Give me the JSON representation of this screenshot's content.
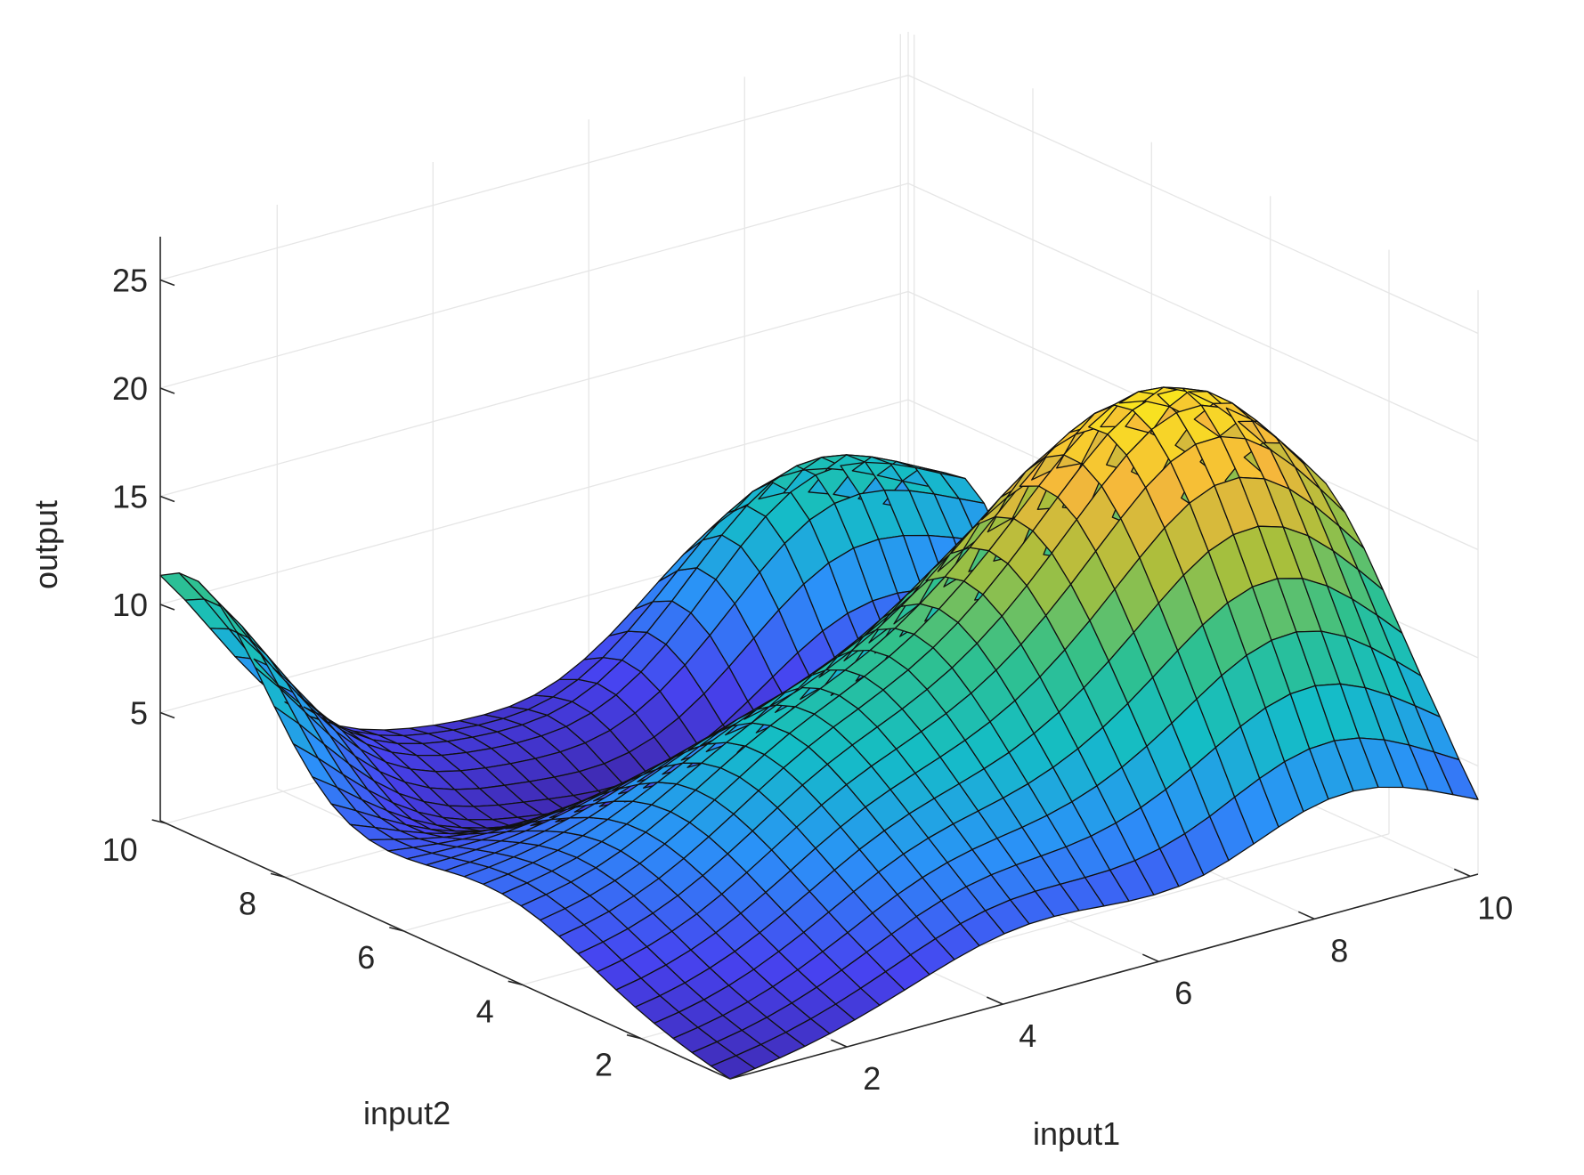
{
  "chart_data": {
    "type": "surface",
    "x": [
      0.5,
      0.82,
      1.14,
      1.46,
      1.78,
      2.1,
      2.42,
      2.74,
      3.06,
      3.38,
      3.7,
      4.02,
      4.34,
      4.66,
      4.98,
      5.3,
      5.62,
      5.94,
      6.26,
      6.58,
      6.9,
      7.22,
      7.54,
      7.86,
      8.18,
      8.5,
      8.82,
      9.14,
      9.46,
      9.78,
      10.1
    ],
    "y": [
      0.5,
      0.82,
      1.14,
      1.46,
      1.78,
      2.1,
      2.42,
      2.74,
      3.06,
      3.38,
      3.7,
      4.02,
      4.34,
      4.66,
      4.98,
      5.3,
      5.62,
      5.94,
      6.26,
      6.58,
      6.9,
      7.22,
      7.54,
      7.86,
      8.18,
      8.5,
      8.82,
      9.14,
      9.46,
      9.78,
      10.1
    ],
    "z": [
      [
        0.0,
        0.16,
        0.34,
        0.56,
        0.83,
        1.15,
        1.51,
        1.9,
        2.3,
        2.68,
        3.0,
        3.24,
        3.38,
        3.41,
        3.36,
        3.26,
        3.17,
        3.14,
        3.22,
        3.43,
        3.79,
        4.24,
        4.7,
        5.1,
        5.36,
        5.42,
        5.28,
        4.96,
        4.51,
        3.99,
        3.45
      ],
      [
        0.19,
        0.36,
        0.56,
        0.81,
        1.12,
        1.48,
        1.9,
        2.35,
        2.81,
        3.24,
        3.62,
        3.91,
        4.09,
        4.17,
        4.18,
        4.18,
        4.21,
        4.33,
        4.57,
        4.94,
        5.43,
        6.0,
        6.55,
        7.01,
        7.29,
        7.35,
        7.16,
        6.76,
        6.2,
        5.56,
        4.89
      ],
      [
        0.42,
        0.6,
        0.82,
        1.1,
        1.45,
        1.86,
        2.34,
        2.85,
        3.37,
        3.87,
        4.29,
        4.62,
        4.85,
        4.99,
        5.09,
        5.2,
        5.38,
        5.67,
        6.07,
        6.59,
        7.22,
        7.9,
        8.56,
        9.1,
        9.43,
        9.49,
        9.26,
        8.77,
        8.09,
        7.3,
        6.47
      ],
      [
        0.68,
        0.87,
        1.11,
        1.42,
        1.81,
        2.27,
        2.8,
        3.36,
        3.95,
        4.49,
        4.96,
        5.34,
        5.62,
        5.83,
        6.02,
        6.25,
        6.57,
        6.99,
        7.53,
        8.19,
        8.94,
        9.74,
        10.51,
        11.13,
        11.51,
        11.58,
        11.3,
        10.73,
        9.91,
        8.97,
        7.97
      ],
      [
        0.98,
        1.18,
        1.44,
        1.78,
        2.21,
        2.72,
        3.29,
        3.91,
        4.54,
        5.13,
        5.65,
        6.07,
        6.41,
        6.69,
        6.98,
        7.32,
        7.76,
        8.31,
        8.98,
        9.77,
        10.66,
        11.58,
        12.45,
        13.16,
        13.58,
        13.65,
        13.34,
        12.68,
        11.76,
        10.69,
        9.55
      ],
      [
        1.33,
        1.54,
        1.82,
        2.19,
        2.64,
        3.19,
        3.81,
        4.47,
        5.14,
        5.78,
        6.33,
        6.8,
        7.19,
        7.55,
        7.93,
        8.37,
        8.93,
        9.6,
        10.41,
        11.33,
        12.34,
        13.38,
        14.36,
        15.14,
        15.6,
        15.67,
        15.32,
        14.6,
        13.59,
        12.41,
        11.15
      ],
      [
        1.73,
        1.95,
        2.25,
        2.63,
        3.11,
        3.69,
        4.34,
        5.04,
        5.75,
        6.42,
        7.02,
        7.52,
        7.96,
        8.39,
        8.85,
        9.39,
        10.05,
        10.84,
        11.77,
        12.81,
        13.94,
        15.08,
        16.14,
        16.98,
        17.47,
        17.53,
        17.15,
        16.37,
        15.29,
        14.02,
        12.67
      ],
      [
        2.16,
        2.39,
        2.69,
        3.09,
        3.58,
        4.18,
        4.86,
        5.59,
        6.33,
        7.03,
        7.66,
        8.2,
        8.68,
        9.17,
        9.69,
        10.31,
        11.06,
        11.94,
        12.96,
        14.09,
        15.3,
        16.5,
        17.61,
        18.48,
        18.98,
        19.02,
        18.61,
        17.79,
        16.66,
        15.34,
        13.93
      ],
      [
        2.6,
        2.83,
        3.13,
        3.53,
        4.03,
        4.64,
        5.33,
        6.07,
        6.83,
        7.56,
        8.21,
        8.78,
        9.3,
        9.82,
        10.41,
        11.09,
        11.9,
        12.85,
        13.94,
        15.13,
        16.37,
        17.6,
        18.71,
        19.58,
        20.05,
        20.07,
        19.63,
        18.79,
        17.64,
        16.3,
        14.87
      ],
      [
        3.01,
        3.23,
        3.53,
        3.93,
        4.42,
        5.03,
        5.72,
        6.46,
        7.22,
        7.96,
        8.62,
        9.21,
        9.74,
        10.3,
        10.91,
        11.62,
        12.47,
        13.45,
        14.56,
        15.76,
        17.0,
        18.2,
        19.28,
        20.08,
        20.49,
        20.46,
        20.0,
        19.14,
        17.99,
        16.66,
        15.25
      ],
      [
        3.36,
        3.58,
        3.86,
        4.24,
        4.72,
        5.31,
        5.98,
        6.71,
        7.45,
        8.18,
        8.84,
        9.42,
        9.96,
        10.52,
        11.13,
        11.85,
        12.7,
        13.67,
        14.76,
        15.93,
        17.12,
        18.25,
        19.22,
        19.92,
        20.22,
        20.11,
        19.59,
        18.72,
        17.58,
        16.28,
        14.92
      ],
      [
        3.62,
        3.83,
        4.09,
        4.44,
        4.9,
        5.45,
        6.08,
        6.77,
        7.48,
        8.17,
        8.8,
        9.36,
        9.88,
        10.42,
        11.02,
        11.72,
        12.54,
        13.47,
        14.51,
        15.61,
        16.71,
        17.73,
        18.57,
        19.13,
        19.29,
        19.08,
        18.5,
        17.6,
        16.48,
        15.21,
        13.91
      ],
      [
        3.78,
        3.97,
        4.2,
        4.51,
        4.93,
        5.43,
        6.01,
        6.65,
        7.3,
        7.94,
        8.53,
        9.04,
        9.53,
        10.03,
        10.59,
        11.25,
        12.02,
        12.89,
        13.84,
        14.84,
        15.81,
        16.68,
        17.37,
        17.77,
        17.8,
        17.5,
        16.88,
        16.0,
        14.92,
        13.73,
        12.53
      ],
      [
        3.83,
        3.98,
        4.19,
        4.45,
        4.81,
        5.25,
        5.77,
        6.33,
        6.9,
        7.47,
        7.99,
        8.44,
        8.86,
        9.31,
        9.81,
        10.4,
        11.08,
        11.85,
        12.69,
        13.55,
        14.37,
        15.07,
        15.58,
        15.81,
        15.71,
        15.33,
        14.7,
        13.85,
        12.85,
        11.77,
        10.69
      ],
      [
        3.78,
        3.9,
        4.06,
        4.28,
        4.57,
        4.94,
        5.37,
        5.84,
        6.33,
        6.8,
        7.23,
        7.61,
        7.96,
        8.32,
        8.74,
        9.24,
        9.81,
        10.46,
        11.17,
        11.89,
        12.55,
        13.09,
        13.43,
        13.5,
        13.28,
        12.83,
        12.19,
        11.4,
        10.5,
        9.56,
        8.63
      ],
      [
        3.66,
        3.74,
        3.85,
        4.01,
        4.23,
        4.52,
        4.86,
        5.24,
        5.62,
        5.99,
        6.33,
        6.61,
        6.87,
        7.14,
        7.47,
        7.86,
        8.31,
        8.83,
        9.39,
        9.96,
        10.47,
        10.85,
        11.03,
        10.99,
        10.7,
        10.2,
        9.55,
        8.81,
        8.0,
        7.16,
        6.35
      ],
      [
        3.52,
        3.54,
        3.6,
        3.69,
        3.84,
        4.05,
        4.3,
        4.58,
        4.86,
        5.14,
        5.38,
        5.57,
        5.75,
        5.93,
        6.16,
        6.45,
        6.8,
        7.2,
        7.64,
        8.09,
        8.48,
        8.75,
        8.83,
        8.7,
        8.36,
        7.85,
        7.23,
        6.54,
        5.82,
        5.09,
        4.4
      ],
      [
        3.41,
        3.36,
        3.33,
        3.34,
        3.4,
        3.52,
        3.68,
        3.87,
        4.06,
        4.24,
        4.39,
        4.5,
        4.58,
        4.68,
        4.82,
        5.02,
        5.28,
        5.6,
        5.95,
        6.31,
        6.63,
        6.85,
        6.9,
        6.75,
        6.42,
        5.95,
        5.39,
        4.79,
        4.18,
        3.6,
        3.06
      ],
      [
        3.38,
        3.22,
        3.08,
        2.98,
        2.94,
        2.96,
        3.03,
        3.14,
        3.25,
        3.35,
        3.42,
        3.45,
        3.45,
        3.46,
        3.51,
        3.62,
        3.79,
        4.03,
        4.31,
        4.61,
        4.89,
        5.08,
        5.12,
        5.0,
        4.72,
        4.33,
        3.86,
        3.37,
        2.89,
        2.44,
        2.05
      ],
      [
        3.49,
        3.2,
        2.91,
        2.67,
        2.5,
        2.41,
        2.38,
        2.39,
        2.42,
        2.45,
        2.46,
        2.42,
        2.36,
        2.3,
        2.28,
        2.32,
        2.44,
        2.62,
        2.86,
        3.14,
        3.4,
        3.59,
        3.66,
        3.59,
        3.38,
        3.07,
        2.71,
        2.32,
        1.96,
        1.63,
        1.35
      ],
      [
        3.8,
        3.35,
        2.88,
        2.46,
        2.12,
        1.89,
        1.74,
        1.65,
        1.59,
        1.54,
        1.48,
        1.38,
        1.26,
        1.16,
        1.09,
        1.09,
        1.16,
        1.31,
        1.53,
        1.81,
        2.09,
        2.31,
        2.44,
        2.45,
        2.33,
        2.11,
        1.84,
        1.55,
        1.28,
        1.04,
        0.85
      ],
      [
        4.36,
        3.73,
        3.07,
        2.45,
        1.92,
        1.52,
        1.22,
        1.0,
        0.83,
        0.69,
        0.56,
        0.4,
        0.24,
        0.09,
        0.0,
        0.0,
        0.08,
        0.25,
        0.51,
        0.83,
        1.17,
        1.47,
        1.69,
        1.79,
        1.77,
        1.64,
        1.45,
        1.22,
        1.0,
        0.8,
        0.65
      ],
      [
        5.21,
        4.4,
        3.52,
        2.7,
        1.98,
        1.4,
        0.97,
        0.64,
        0.4,
        0.21,
        0.05,
        -0.13,
        -0.31,
        -0.47,
        -0.56,
        -0.56,
        -0.45,
        -0.22,
        0.12,
        0.54,
        0.99,
        1.41,
        1.74,
        1.95,
        2.0,
        1.93,
        1.76,
        1.53,
        1.29,
        1.07,
        0.89
      ],
      [
        6.34,
        5.36,
        4.29,
        3.26,
        2.35,
        1.61,
        1.04,
        0.62,
        0.32,
        0.1,
        -0.08,
        -0.26,
        -0.44,
        -0.58,
        -0.65,
        -0.6,
        -0.42,
        -0.09,
        0.38,
        0.96,
        1.58,
        2.17,
        2.66,
        2.99,
        3.14,
        3.11,
        2.95,
        2.7,
        2.41,
        2.12,
        1.86
      ],
      [
        7.67,
        6.54,
        5.29,
        4.06,
        2.97,
        2.07,
        1.38,
        0.87,
        0.52,
        0.27,
        0.09,
        -0.08,
        -0.23,
        -0.33,
        -0.34,
        -0.21,
        0.06,
        0.52,
        1.15,
        1.91,
        2.73,
        3.53,
        4.22,
        4.72,
        4.98,
        5.02,
        4.88,
        4.6,
        4.25,
        3.88,
        3.53
      ],
      [
        9.07,
        7.79,
        6.38,
        4.98,
        3.72,
        2.68,
        1.88,
        1.3,
        0.91,
        0.64,
        0.47,
        0.33,
        0.22,
        0.16,
        0.21,
        0.42,
        0.81,
        1.4,
        2.18,
        3.11,
        4.12,
        5.11,
        5.99,
        6.65,
        7.02,
        7.11,
        6.97,
        6.66,
        6.25,
        5.78,
        5.33
      ],
      [
        10.35,
        8.95,
        7.4,
        5.85,
        4.46,
        3.3,
        2.41,
        1.77,
        1.34,
        1.06,
        0.88,
        0.76,
        0.68,
        0.67,
        0.77,
        1.04,
        1.52,
        2.21,
        3.11,
        4.17,
        5.32,
        6.46,
        7.47,
        8.24,
        8.69,
        8.81,
        8.67,
        8.33,
        7.86,
        7.33,
        6.8
      ],
      [
        11.34,
        9.86,
        8.2,
        6.55,
        5.05,
        3.8,
        2.84,
        2.15,
        1.69,
        1.38,
        1.19,
        1.07,
        1.0,
        1.01,
        1.13,
        1.44,
        1.96,
        2.71,
        3.67,
        4.81,
        6.04,
        7.25,
        8.32,
        9.13,
        9.6,
        9.72,
        9.56,
        9.18,
        8.68,
        8.11,
        7.55
      ],
      [
        11.86,
        10.33,
        8.63,
        6.91,
        5.36,
        4.06,
        3.05,
        2.33,
        1.84,
        1.52,
        1.31,
        1.19,
        1.12,
        1.13,
        1.26,
        1.57,
        2.1,
        2.86,
        3.83,
        4.96,
        6.18,
        7.38,
        8.42,
        9.2,
        9.63,
        9.71,
        9.51,
        9.1,
        8.57,
        7.98,
        7.4
      ],
      [
        11.85,
        10.33,
        8.63,
        6.93,
        5.38,
        4.08,
        3.07,
        2.33,
        1.83,
        1.49,
        1.27,
        1.12,
        1.03,
        1.02,
        1.12,
        1.39,
        1.88,
        2.58,
        3.48,
        4.53,
        5.66,
        6.75,
        7.69,
        8.36,
        8.7,
        8.72,
        8.48,
        8.06,
        7.53,
        6.95,
        6.4
      ],
      [
        11.34,
        9.88,
        8.26,
        6.64,
        5.16,
        3.91,
        2.93,
        2.21,
        1.71,
        1.36,
        1.12,
        0.95,
        0.84,
        0.8,
        0.86,
        1.07,
        1.48,
        2.09,
        2.87,
        3.78,
        4.76,
        5.7,
        6.49,
        7.05,
        7.3,
        7.26,
        6.99,
        6.57,
        6.05,
        5.5,
        4.98
      ]
    ],
    "zlim": [
      0,
      27
    ],
    "xlabel": "input1",
    "ylabel": "input2",
    "zlabel": "output",
    "xticks": [
      2,
      4,
      6,
      8,
      10
    ],
    "yticks": [
      2,
      4,
      6,
      8,
      10
    ],
    "zticks": [
      5,
      10,
      15,
      20,
      25
    ],
    "colormap": [
      "#3E26A8",
      "#4743F0",
      "#2B91F8",
      "#14BDC6",
      "#31C08B",
      "#A7BF3C",
      "#F5B73B",
      "#F9E81C"
    ],
    "grid": true,
    "mesh_color": "#111111"
  }
}
